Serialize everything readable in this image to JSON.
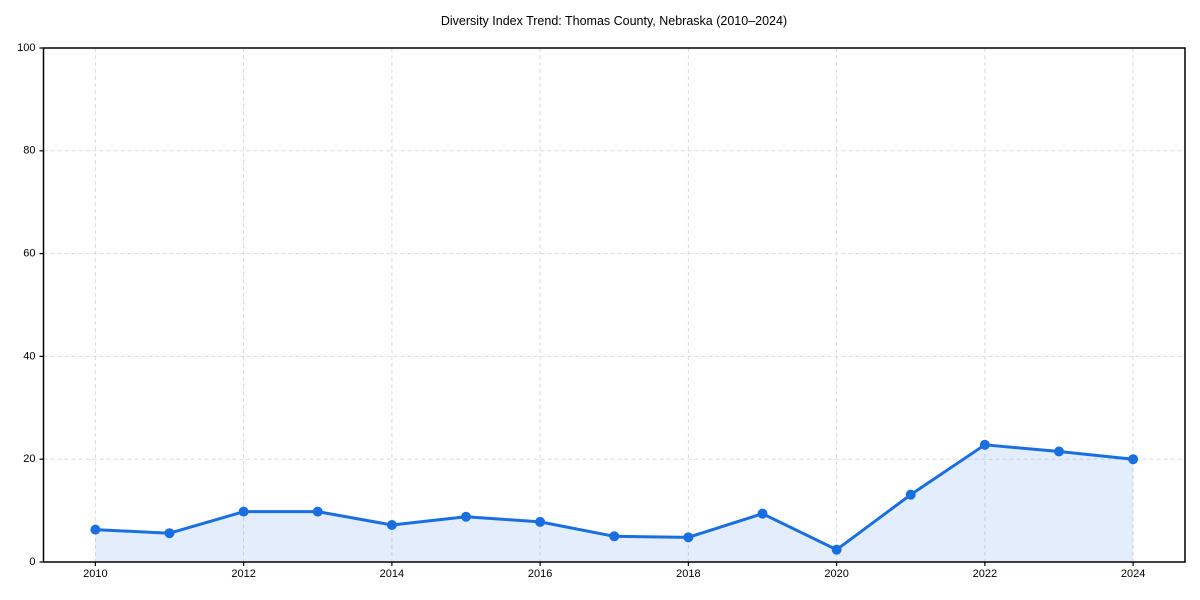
{
  "chart_data": {
    "type": "line",
    "title": "Diversity Index Trend: Thomas County, Nebraska (2010–2024)",
    "series_name": "Diversity Index",
    "x": [
      2010,
      2011,
      2012,
      2013,
      2014,
      2015,
      2016,
      2017,
      2018,
      2019,
      2020,
      2021,
      2022,
      2023,
      2024
    ],
    "values": [
      6.3,
      5.6,
      9.8,
      9.8,
      7.2,
      8.8,
      7.8,
      5.0,
      4.8,
      9.4,
      2.4,
      13.1,
      22.8,
      21.5,
      20.0
    ],
    "xlabel": "",
    "ylabel": "",
    "xlim": [
      2009.3,
      2024.7
    ],
    "ylim": [
      0,
      100
    ],
    "x_ticks": [
      2010,
      2012,
      2014,
      2016,
      2018,
      2020,
      2022,
      2024
    ],
    "y_ticks": [
      0,
      20,
      40,
      60,
      80,
      100
    ],
    "grid": true,
    "grid_style": "dashed",
    "legend": "none",
    "marker": "circle",
    "area_fill": true,
    "colors": {
      "line": "#1a6fe0",
      "marker": "#1a6fe0",
      "area_fill_opacity": 0.12,
      "grid": "#dcdcdc",
      "axis": "#000000",
      "text": "#000000",
      "background": "#ffffff"
    }
  }
}
